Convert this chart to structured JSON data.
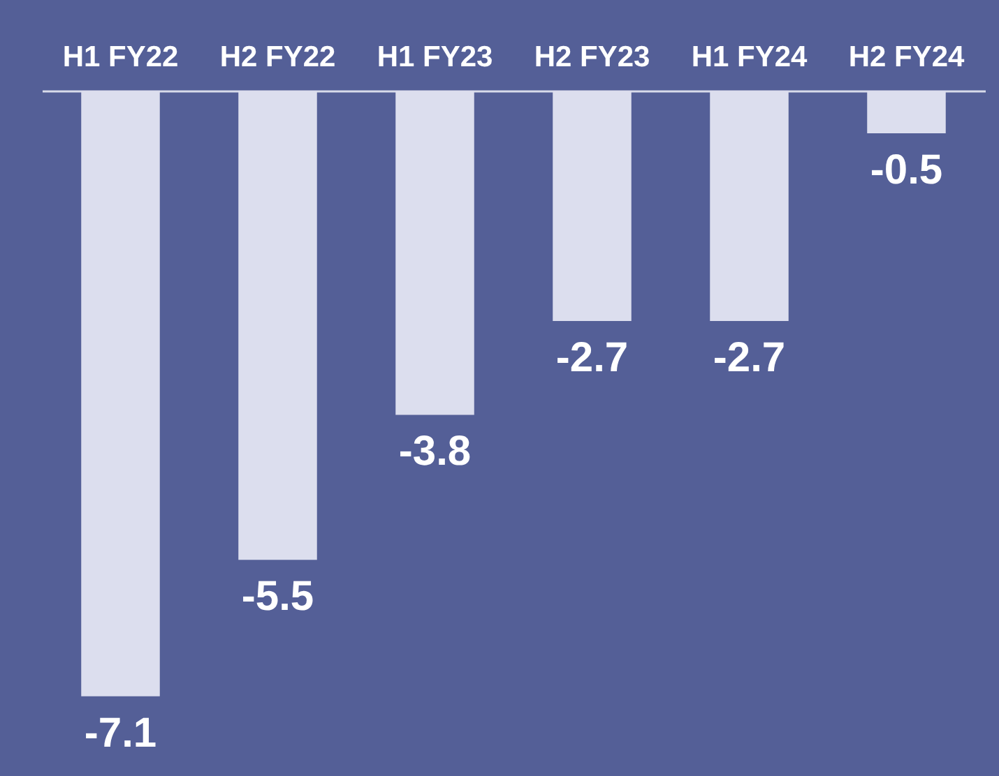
{
  "chart_data": {
    "type": "bar",
    "categories": [
      "H1 FY22",
      "H2 FY22",
      "H1 FY23",
      "H2 FY23",
      "H1 FY24",
      "H2 FY24"
    ],
    "values": [
      -7.1,
      -5.5,
      -3.8,
      -2.7,
      -2.7,
      -0.5
    ],
    "color": "#dcdeee",
    "data_labels": true
  }
}
